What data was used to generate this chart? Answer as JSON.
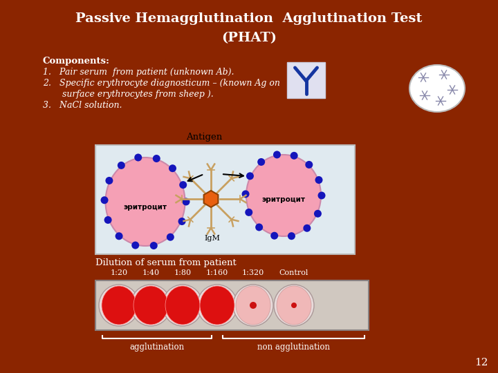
{
  "title_line1": "Passive Hemagglutination  Agglutination Test",
  "title_line2": "(PHAT)",
  "bg_color": "#8B2500",
  "title_color": "#FFFFFF",
  "text_color": "#FFFFFF",
  "components_label": "Components:",
  "item1": "Pair serum  from patient (unknown Ab).",
  "item2a": "Specific erythrocyte diagnosticum – (known Ag on",
  "item2b": "surface erythrocytes from sheep ).",
  "item3": "NaCl solution.",
  "antigen_label": "Antigen",
  "dilution_label": "Dilution of serum from patient",
  "dilutions": [
    "1:20",
    "1:40",
    "1:80",
    "1:160",
    "1:320",
    "Control"
  ],
  "agglutination_label": "agglutination",
  "non_agglutination_label": "non agglutination",
  "slide_number": "12",
  "well_tray_color": "#D0C8C0",
  "well_tray_border": "#888080",
  "well_outer_color": "#E8DADA",
  "well_border_color": "#AA9898",
  "agglut_fill": "#DD1010",
  "non_agglut_fill": "#F0B8B8",
  "non_agglut_dot": "#CC1010",
  "diagram_bg": "#E0EAF0",
  "diagram_border": "#BBBBBB",
  "erythrocyte_fill": "#F5A0B5",
  "erythrocyte_border": "#CC88AA",
  "antibody_color": "#C8A060",
  "antigen_center_color": "#E86010",
  "dot_color": "#1515BB",
  "igm_label": "IgM",
  "erythrocyte_label": "эритроцит",
  "ab_icon_bg": "#E0E0F0",
  "ab_icon_color": "#1535A0",
  "sheep_bg": "#FFFFFF",
  "sheep_border": "#BBBBBB",
  "sheep_dot_color": "#8888AA"
}
